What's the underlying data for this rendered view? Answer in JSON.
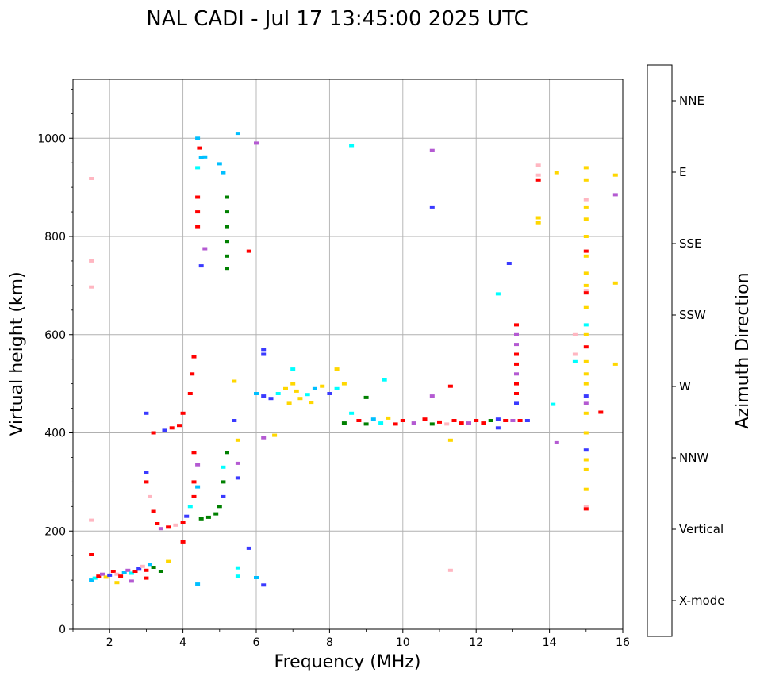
{
  "chart_data": {
    "type": "scatter",
    "title": "NAL CADI - Jul 17 13:45:00 2025 UTC",
    "xlabel": "Frequency (MHz)",
    "ylabel": "Virtual height (km)",
    "xlim": [
      1,
      16
    ],
    "ylim": [
      0,
      1120
    ],
    "xticks": [
      2,
      4,
      6,
      8,
      10,
      12,
      14,
      16
    ],
    "yticks": [
      0,
      200,
      400,
      600,
      800,
      1000
    ],
    "grid": true,
    "colorbar": {
      "label": "Azimuth Direction",
      "categories": [
        {
          "name": "X-mode",
          "color": "#008000"
        },
        {
          "name": "Vertical",
          "color": "#ff0000"
        },
        {
          "name": "NNW",
          "color": "#3a3aff"
        },
        {
          "name": "W",
          "color": "#b45ad2"
        },
        {
          "name": "SSW",
          "color": "#ffb6c1"
        },
        {
          "name": "SSE",
          "color": "#ffd700"
        },
        {
          "name": "E",
          "color": "#00ffff"
        },
        {
          "name": "NNE",
          "color": "#00bfff"
        }
      ]
    },
    "series": [
      {
        "name": "Low E-layer traces",
        "points": [
          [
            1.5,
            100,
            "NNE"
          ],
          [
            1.6,
            104,
            "E"
          ],
          [
            1.7,
            108,
            "Vertical"
          ],
          [
            1.8,
            112,
            "W"
          ],
          [
            1.9,
            106,
            "SSE"
          ],
          [
            2.0,
            110,
            "NNW"
          ],
          [
            2.1,
            118,
            "Vertical"
          ],
          [
            2.2,
            112,
            "SSW"
          ],
          [
            2.3,
            108,
            "Vertical"
          ],
          [
            2.4,
            116,
            "NNE"
          ],
          [
            2.5,
            120,
            "W"
          ],
          [
            2.6,
            114,
            "E"
          ],
          [
            2.7,
            118,
            "Vertical"
          ],
          [
            2.8,
            124,
            "NNW"
          ],
          [
            2.9,
            128,
            "SSW"
          ],
          [
            3.0,
            120,
            "Vertical"
          ],
          [
            3.1,
            132,
            "NNE"
          ],
          [
            3.2,
            126,
            "X-mode"
          ],
          [
            3.4,
            118,
            "X-mode"
          ],
          [
            3.6,
            138,
            "SSE"
          ],
          [
            1.5,
            152,
            "Vertical"
          ],
          [
            2.2,
            95,
            "SSE"
          ],
          [
            2.6,
            98,
            "W"
          ],
          [
            3.0,
            104,
            "Vertical"
          ]
        ]
      },
      {
        "name": "Sporadic low points",
        "points": [
          [
            1.5,
            222,
            "SSW"
          ],
          [
            1.5,
            697,
            "SSW"
          ],
          [
            1.5,
            750,
            "SSW"
          ],
          [
            1.5,
            918,
            "SSW"
          ]
        ]
      },
      {
        "name": "F1 trace",
        "points": [
          [
            3.0,
            320,
            "NNW"
          ],
          [
            3.0,
            300,
            "Vertical"
          ],
          [
            3.1,
            270,
            "SSW"
          ],
          [
            3.2,
            240,
            "Vertical"
          ],
          [
            3.3,
            215,
            "Vertical"
          ],
          [
            3.4,
            205,
            "W"
          ],
          [
            3.6,
            208,
            "Vertical"
          ],
          [
            3.8,
            212,
            "SSW"
          ],
          [
            4.0,
            218,
            "Vertical"
          ],
          [
            4.1,
            230,
            "NNW"
          ],
          [
            4.2,
            250,
            "E"
          ],
          [
            4.3,
            270,
            "Vertical"
          ],
          [
            4.3,
            300,
            "Vertical"
          ],
          [
            4.4,
            290,
            "NNE"
          ],
          [
            3.2,
            400,
            "Vertical"
          ],
          [
            3.5,
            405,
            "NNW"
          ],
          [
            3.7,
            410,
            "Vertical"
          ],
          [
            3.9,
            415,
            "Vertical"
          ],
          [
            4.0,
            440,
            "Vertical"
          ],
          [
            4.2,
            480,
            "Vertical"
          ],
          [
            4.25,
            520,
            "Vertical"
          ],
          [
            4.3,
            555,
            "Vertical"
          ],
          [
            4.3,
            360,
            "Vertical"
          ],
          [
            4.4,
            335,
            "W"
          ],
          [
            4.0,
            178,
            "Vertical"
          ]
        ]
      },
      {
        "name": "X-mode F1",
        "points": [
          [
            4.5,
            225,
            "X-mode"
          ],
          [
            4.7,
            228,
            "X-mode"
          ],
          [
            4.9,
            235,
            "X-mode"
          ],
          [
            5.0,
            250,
            "X-mode"
          ],
          [
            5.1,
            270,
            "NNW"
          ],
          [
            5.1,
            300,
            "X-mode"
          ],
          [
            5.2,
            360,
            "X-mode"
          ],
          [
            5.1,
            330,
            "E"
          ]
        ]
      },
      {
        "name": "Upper vertical streak",
        "points": [
          [
            4.4,
            1000,
            "NNE"
          ],
          [
            4.45,
            980,
            "Vertical"
          ],
          [
            4.5,
            960,
            "NNE"
          ],
          [
            4.4,
            940,
            "E"
          ],
          [
            4.4,
            880,
            "Vertical"
          ],
          [
            4.4,
            850,
            "Vertical"
          ],
          [
            4.4,
            820,
            "Vertical"
          ],
          [
            4.6,
            962,
            "NNE"
          ],
          [
            5.0,
            948,
            "NNE"
          ],
          [
            5.2,
            880,
            "X-mode"
          ],
          [
            5.2,
            850,
            "X-mode"
          ],
          [
            5.2,
            820,
            "X-mode"
          ],
          [
            5.2,
            790,
            "X-mode"
          ],
          [
            5.2,
            760,
            "X-mode"
          ],
          [
            5.2,
            735,
            "X-mode"
          ],
          [
            5.5,
            1010,
            "NNE"
          ],
          [
            5.8,
            770,
            "Vertical"
          ],
          [
            6.0,
            990,
            "W"
          ],
          [
            5.1,
            930,
            "NNE"
          ],
          [
            4.5,
            740,
            "NNW"
          ],
          [
            4.6,
            775,
            "W"
          ]
        ]
      },
      {
        "name": "F2 cluster",
        "points": [
          [
            6.0,
            480,
            "NNE"
          ],
          [
            6.2,
            475,
            "NNW"
          ],
          [
            6.4,
            470,
            "NNW"
          ],
          [
            6.6,
            480,
            "E"
          ],
          [
            6.8,
            490,
            "SSE"
          ],
          [
            7.0,
            500,
            "SSE"
          ],
          [
            7.1,
            485,
            "SSE"
          ],
          [
            7.2,
            470,
            "SSE"
          ],
          [
            7.4,
            478,
            "E"
          ],
          [
            7.6,
            490,
            "NNE"
          ],
          [
            7.8,
            495,
            "SSE"
          ],
          [
            8.0,
            480,
            "NNW"
          ],
          [
            8.2,
            490,
            "E"
          ],
          [
            7.0,
            530,
            "E"
          ],
          [
            6.9,
            460,
            "SSE"
          ],
          [
            6.2,
            570,
            "NNW"
          ],
          [
            6.2,
            560,
            "NNW"
          ],
          [
            6.5,
            395,
            "SSE"
          ],
          [
            6.2,
            390,
            "W"
          ],
          [
            7.5,
            462,
            "SSE"
          ],
          [
            8.4,
            500,
            "SSE"
          ],
          [
            8.2,
            530,
            "SSE"
          ]
        ]
      },
      {
        "name": "F2 horizontal trace",
        "points": [
          [
            8.4,
            420,
            "X-mode"
          ],
          [
            8.8,
            425,
            "Vertical"
          ],
          [
            9.0,
            418,
            "X-mode"
          ],
          [
            9.2,
            428,
            "NNE"
          ],
          [
            9.4,
            420,
            "E"
          ],
          [
            9.6,
            430,
            "SSE"
          ],
          [
            9.8,
            418,
            "Vertical"
          ],
          [
            10.0,
            425,
            "Vertical"
          ],
          [
            10.3,
            420,
            "W"
          ],
          [
            10.6,
            428,
            "Vertical"
          ],
          [
            10.8,
            418,
            "X-mode"
          ],
          [
            11.0,
            422,
            "Vertical"
          ],
          [
            11.2,
            418,
            "SSW"
          ],
          [
            11.4,
            425,
            "Vertical"
          ],
          [
            11.6,
            420,
            "Vertical"
          ],
          [
            11.8,
            420,
            "W"
          ],
          [
            12.0,
            425,
            "Vertical"
          ],
          [
            12.2,
            420,
            "Vertical"
          ],
          [
            12.4,
            425,
            "X-mode"
          ],
          [
            12.6,
            428,
            "NNW"
          ],
          [
            12.8,
            425,
            "Vertical"
          ],
          [
            13.0,
            425,
            "W"
          ],
          [
            13.2,
            425,
            "Vertical"
          ],
          [
            13.4,
            425,
            "NNW"
          ],
          [
            8.6,
            440,
            "E"
          ],
          [
            9.0,
            472,
            "X-mode"
          ],
          [
            9.5,
            508,
            "E"
          ],
          [
            10.8,
            475,
            "W"
          ],
          [
            11.3,
            495,
            "Vertical"
          ],
          [
            11.3,
            385,
            "SSE"
          ],
          [
            10.8,
            975,
            "W"
          ],
          [
            10.8,
            860,
            "NNW"
          ],
          [
            8.6,
            985,
            "E"
          ],
          [
            11.3,
            120,
            "SSW"
          ]
        ]
      },
      {
        "name": "13 MHz column",
        "points": [
          [
            13.1,
            620,
            "Vertical"
          ],
          [
            13.1,
            600,
            "W"
          ],
          [
            13.1,
            580,
            "W"
          ],
          [
            13.1,
            560,
            "Vertical"
          ],
          [
            13.1,
            540,
            "Vertical"
          ],
          [
            13.1,
            520,
            "W"
          ],
          [
            13.1,
            500,
            "Vertical"
          ],
          [
            13.1,
            480,
            "Vertical"
          ],
          [
            13.1,
            460,
            "NNW"
          ],
          [
            12.9,
            745,
            "NNW"
          ],
          [
            12.6,
            683,
            "E"
          ],
          [
            12.6,
            410,
            "NNW"
          ],
          [
            13.7,
            915,
            "Vertical"
          ],
          [
            13.7,
            945,
            "SSW"
          ],
          [
            13.7,
            925,
            "SSW"
          ],
          [
            13.7,
            838,
            "SSE"
          ],
          [
            13.7,
            828,
            "SSE"
          ],
          [
            14.2,
            930,
            "SSE"
          ],
          [
            14.1,
            458,
            "E"
          ],
          [
            14.2,
            380,
            "W"
          ]
        ]
      },
      {
        "name": "15 MHz column",
        "points": [
          [
            15.0,
            940,
            "SSE"
          ],
          [
            15.0,
            915,
            "SSE"
          ],
          [
            15.0,
            875,
            "SSW"
          ],
          [
            15.0,
            860,
            "SSE"
          ],
          [
            15.0,
            835,
            "SSE"
          ],
          [
            15.0,
            800,
            "SSE"
          ],
          [
            15.0,
            770,
            "Vertical"
          ],
          [
            15.0,
            760,
            "SSE"
          ],
          [
            15.0,
            725,
            "SSE"
          ],
          [
            15.0,
            700,
            "SSE"
          ],
          [
            15.0,
            690,
            "SSW"
          ],
          [
            15.0,
            685,
            "Vertical"
          ],
          [
            15.0,
            655,
            "SSE"
          ],
          [
            15.0,
            620,
            "E"
          ],
          [
            15.0,
            600,
            "SSE"
          ],
          [
            15.0,
            575,
            "Vertical"
          ],
          [
            15.0,
            545,
            "SSE"
          ],
          [
            15.0,
            520,
            "SSE"
          ],
          [
            15.0,
            500,
            "SSE"
          ],
          [
            15.0,
            475,
            "NNW"
          ],
          [
            15.0,
            460,
            "W"
          ],
          [
            15.0,
            440,
            "SSE"
          ],
          [
            15.0,
            400,
            "SSE"
          ],
          [
            15.0,
            365,
            "NNW"
          ],
          [
            15.0,
            345,
            "SSE"
          ],
          [
            15.0,
            325,
            "SSE"
          ],
          [
            15.0,
            285,
            "SSE"
          ],
          [
            15.0,
            250,
            "SSW"
          ],
          [
            15.0,
            245,
            "Vertical"
          ],
          [
            14.7,
            600,
            "SSW"
          ],
          [
            14.7,
            560,
            "SSW"
          ],
          [
            14.7,
            545,
            "E"
          ],
          [
            15.4,
            442,
            "Vertical"
          ],
          [
            15.8,
            925,
            "SSE"
          ],
          [
            15.8,
            885,
            "W"
          ],
          [
            15.8,
            705,
            "SSE"
          ],
          [
            15.8,
            540,
            "SSE"
          ]
        ]
      },
      {
        "name": "Sparse points",
        "points": [
          [
            5.5,
            125,
            "E"
          ],
          [
            5.5,
            108,
            "E"
          ],
          [
            5.8,
            165,
            "NNW"
          ],
          [
            6.2,
            90,
            "NNW"
          ],
          [
            6.0,
            105,
            "NNE"
          ],
          [
            5.5,
            338,
            "W"
          ],
          [
            5.5,
            308,
            "NNW"
          ],
          [
            5.4,
            505,
            "SSE"
          ],
          [
            5.5,
            385,
            "SSE"
          ],
          [
            5.4,
            425,
            "NNW"
          ],
          [
            4.4,
            92,
            "NNE"
          ],
          [
            3.0,
            440,
            "NNW"
          ]
        ]
      }
    ]
  }
}
